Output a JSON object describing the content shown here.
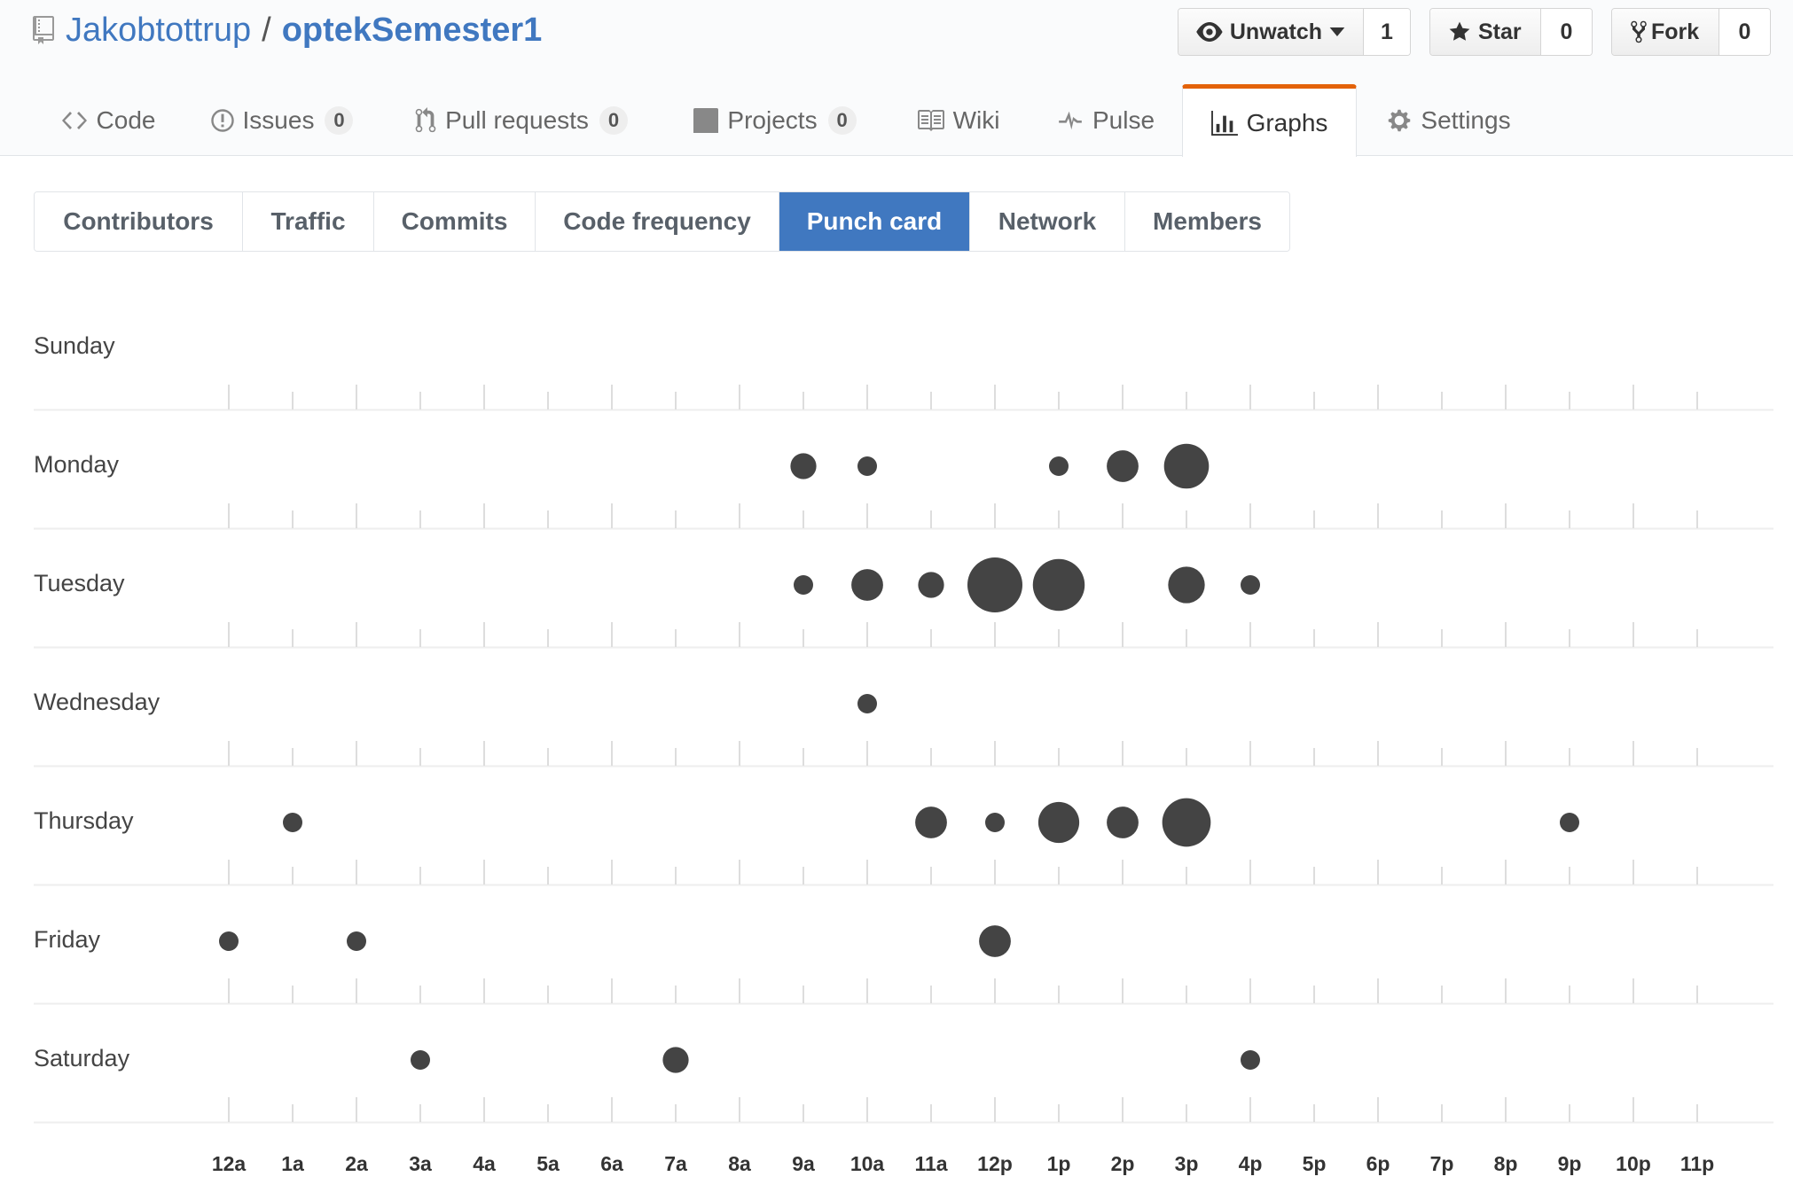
{
  "repo": {
    "owner": "Jakobtottrup",
    "separator": "/",
    "name": "optekSemester1"
  },
  "social": {
    "watch_label": "Unwatch",
    "watch_count": "1",
    "star_label": "Star",
    "star_count": "0",
    "fork_label": "Fork",
    "fork_count": "0"
  },
  "reponav": [
    {
      "label": "Code",
      "icon": "code-icon"
    },
    {
      "label": "Issues",
      "icon": "issue-opened-icon",
      "count": "0"
    },
    {
      "label": "Pull requests",
      "icon": "git-pull-request-icon",
      "count": "0"
    },
    {
      "label": "Projects",
      "icon": "project-icon",
      "count": "0"
    },
    {
      "label": "Wiki",
      "icon": "book-icon"
    },
    {
      "label": "Pulse",
      "icon": "pulse-icon"
    },
    {
      "label": "Graphs",
      "icon": "graph-icon",
      "selected": true
    },
    {
      "label": "Settings",
      "icon": "gear-icon"
    }
  ],
  "subnav": [
    {
      "label": "Contributors"
    },
    {
      "label": "Traffic"
    },
    {
      "label": "Commits"
    },
    {
      "label": "Code frequency"
    },
    {
      "label": "Punch card",
      "selected": true
    },
    {
      "label": "Network"
    },
    {
      "label": "Members"
    }
  ],
  "colors": {
    "link": "#4078c0",
    "selected_subnav": "#4078c0",
    "active_tab_border": "#e36209",
    "dot": "#444444"
  },
  "chart_data": {
    "type": "scatter",
    "days": [
      "Sunday",
      "Monday",
      "Tuesday",
      "Wednesday",
      "Thursday",
      "Friday",
      "Saturday"
    ],
    "hours": [
      "12a",
      "1a",
      "2a",
      "3a",
      "4a",
      "5a",
      "6a",
      "7a",
      "8a",
      "9a",
      "10a",
      "11a",
      "12p",
      "1p",
      "2p",
      "3p",
      "4p",
      "5p",
      "6p",
      "7p",
      "8p",
      "9p",
      "10p",
      "11p"
    ],
    "points": [
      {
        "day": "Monday",
        "hour": "9a",
        "size": 2
      },
      {
        "day": "Monday",
        "hour": "10a",
        "size": 1
      },
      {
        "day": "Monday",
        "hour": "1p",
        "size": 1
      },
      {
        "day": "Monday",
        "hour": "2p",
        "size": 3
      },
      {
        "day": "Monday",
        "hour": "3p",
        "size": 6
      },
      {
        "day": "Tuesday",
        "hour": "9a",
        "size": 1
      },
      {
        "day": "Tuesday",
        "hour": "10a",
        "size": 3
      },
      {
        "day": "Tuesday",
        "hour": "11a",
        "size": 2
      },
      {
        "day": "Tuesday",
        "hour": "12p",
        "size": 9
      },
      {
        "day": "Tuesday",
        "hour": "1p",
        "size": 8
      },
      {
        "day": "Tuesday",
        "hour": "3p",
        "size": 4
      },
      {
        "day": "Tuesday",
        "hour": "4p",
        "size": 1
      },
      {
        "day": "Wednesday",
        "hour": "10a",
        "size": 1
      },
      {
        "day": "Thursday",
        "hour": "1a",
        "size": 1
      },
      {
        "day": "Thursday",
        "hour": "11a",
        "size": 3
      },
      {
        "day": "Thursday",
        "hour": "12p",
        "size": 1
      },
      {
        "day": "Thursday",
        "hour": "1p",
        "size": 5
      },
      {
        "day": "Thursday",
        "hour": "2p",
        "size": 3
      },
      {
        "day": "Thursday",
        "hour": "3p",
        "size": 7
      },
      {
        "day": "Thursday",
        "hour": "9p",
        "size": 1
      },
      {
        "day": "Friday",
        "hour": "12a",
        "size": 1
      },
      {
        "day": "Friday",
        "hour": "2a",
        "size": 1
      },
      {
        "day": "Friday",
        "hour": "12p",
        "size": 3
      },
      {
        "day": "Saturday",
        "hour": "3a",
        "size": 1
      },
      {
        "day": "Saturday",
        "hour": "7a",
        "size": 2
      },
      {
        "day": "Saturday",
        "hour": "4p",
        "size": 1
      }
    ]
  }
}
